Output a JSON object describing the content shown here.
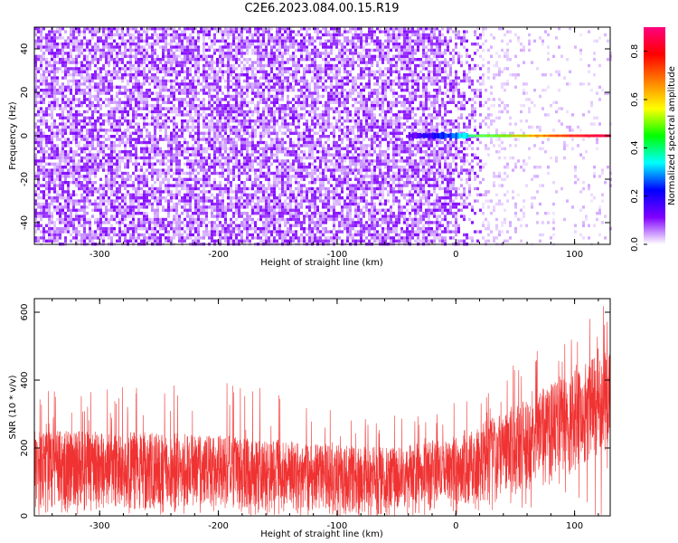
{
  "title": "C2E6.2023.084.00.15.R19",
  "colorbar": {
    "label": "Normalized spectral amplitude",
    "ticks": [
      "0.0",
      "0.2",
      "0.4",
      "0.6",
      "0.8"
    ],
    "colors": [
      "#ffffff",
      "#8000ff",
      "#0000ff",
      "#00ffff",
      "#00ff00",
      "#ffff00",
      "#ff8000",
      "#ff0000",
      "#ff0080"
    ]
  },
  "chart_data": [
    {
      "type": "heatmap",
      "title": "",
      "xlabel": "Height of straight line (km)",
      "ylabel": "Frequency (Hz)",
      "xlim": [
        -355,
        130
      ],
      "ylim": [
        -50,
        50
      ],
      "xticks": [
        "-300",
        "-200",
        "-100",
        "0",
        "100"
      ],
      "yticks": [
        "-40",
        "-20",
        "0",
        "20",
        "40"
      ],
      "zlim": [
        0,
        0.9
      ],
      "description_values": {
        "noise_amplitude_below_0km": 0.07,
        "noise_amplitude_above_50km": 0.01,
        "signal_frequency_hz": 0,
        "signal_amplitude_at_0km": 0.3,
        "signal_amplitude_at_130km": 0.85
      }
    },
    {
      "type": "line",
      "title": "",
      "xlabel": "Height of straight line (km)",
      "ylabel": "SNR (10 * v/v)",
      "xlim": [
        -355,
        130
      ],
      "ylim": [
        0,
        640
      ],
      "xticks": [
        "-300",
        "-200",
        "-100",
        "0",
        "100"
      ],
      "yticks": [
        "0",
        "200",
        "400",
        "600"
      ],
      "series": [
        {
          "color": "#f03232",
          "envelope_x": [
            -355,
            -300,
            -200,
            -100,
            -50,
            0,
            50,
            100,
            130
          ],
          "envelope_min": [
            20,
            20,
            20,
            10,
            10,
            30,
            60,
            120,
            200
          ],
          "envelope_typical_max": [
            250,
            250,
            240,
            210,
            200,
            240,
            330,
            430,
            500
          ],
          "envelope_peak_max": [
            370,
            380,
            400,
            340,
            320,
            380,
            450,
            560,
            640
          ]
        }
      ]
    }
  ]
}
